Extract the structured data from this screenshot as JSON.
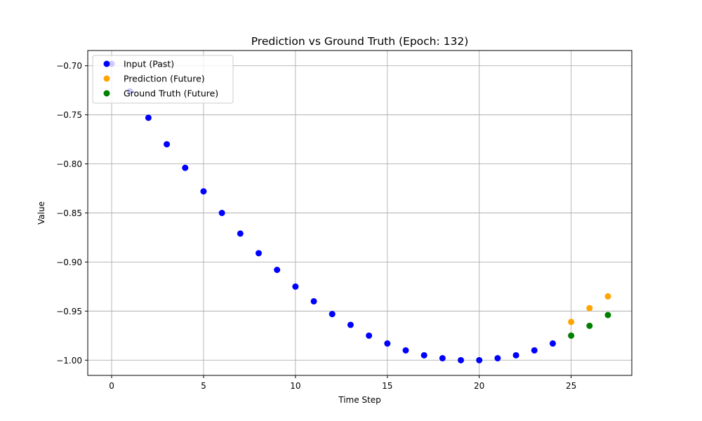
{
  "chart_data": {
    "type": "scatter",
    "title": "Prediction vs Ground Truth (Epoch: 132)",
    "xlabel": "Time Step",
    "ylabel": "Value",
    "xlim": [
      -1.3,
      28.3
    ],
    "ylim": [
      -1.0155,
      -0.6845
    ],
    "xticks": [
      0,
      5,
      10,
      15,
      20,
      25
    ],
    "yticks": [
      -1.0,
      -0.95,
      -0.9,
      -0.85,
      -0.8,
      -0.75,
      -0.7
    ],
    "ytick_labels": [
      "−1.00",
      "−0.95",
      "−0.90",
      "−0.85",
      "−0.80",
      "−0.75",
      "−0.70"
    ],
    "grid": true,
    "legend_position": "top-left",
    "series": [
      {
        "name": "Input (Past)",
        "color": "#0000ff",
        "x": [
          0,
          1,
          2,
          3,
          4,
          5,
          6,
          7,
          8,
          9,
          10,
          11,
          12,
          13,
          14,
          15,
          16,
          17,
          18,
          19,
          20,
          21,
          22,
          23,
          24
        ],
        "y": [
          -0.698,
          -0.726,
          -0.753,
          -0.78,
          -0.804,
          -0.828,
          -0.85,
          -0.871,
          -0.891,
          -0.908,
          -0.925,
          -0.94,
          -0.953,
          -0.964,
          -0.975,
          -0.983,
          -0.99,
          -0.995,
          -0.998,
          -1.0,
          -1.0,
          -0.998,
          -0.995,
          -0.99,
          -0.983
        ]
      },
      {
        "name": "Prediction (Future)",
        "color": "#ffa500",
        "x": [
          25,
          26,
          27
        ],
        "y": [
          -0.961,
          -0.947,
          -0.935
        ]
      },
      {
        "name": "Ground Truth (Future)",
        "color": "#008000",
        "x": [
          25,
          26,
          27
        ],
        "y": [
          -0.975,
          -0.965,
          -0.954
        ]
      }
    ]
  }
}
